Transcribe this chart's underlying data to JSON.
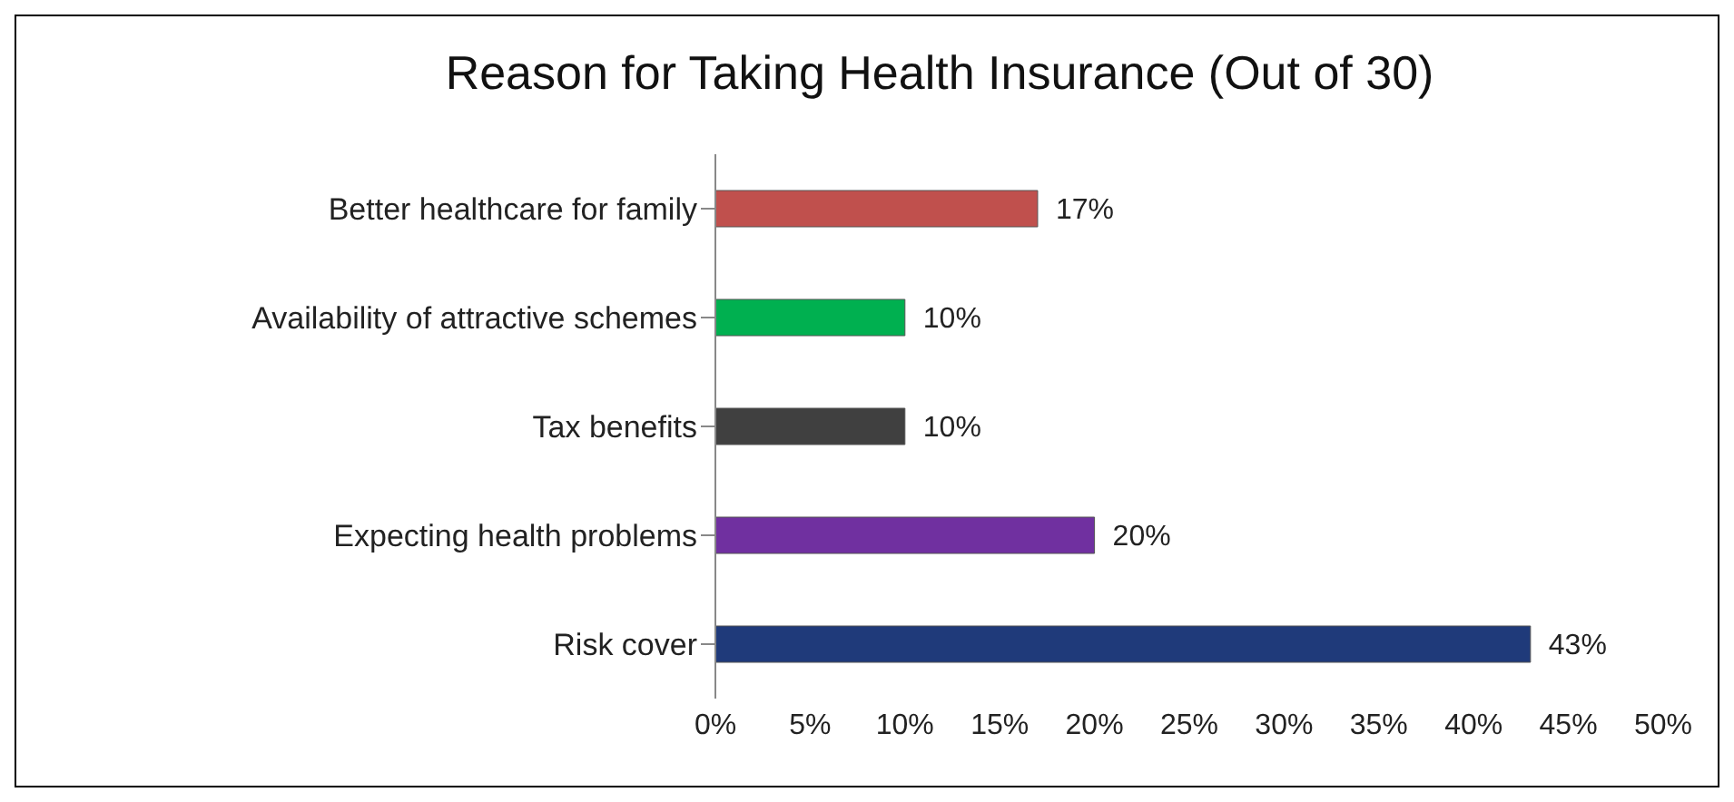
{
  "chart_data": {
    "type": "bar",
    "orientation": "horizontal",
    "title": "Reason for Taking Health Insurance (Out of 30)",
    "categories": [
      "Better healthcare for family",
      "Availability of attractive schemes",
      "Tax benefits",
      "Expecting health problems",
      "Risk cover"
    ],
    "values": [
      17,
      10,
      10,
      20,
      43
    ],
    "colors": [
      "#c0504d",
      "#00b050",
      "#404040",
      "#7030a0",
      "#1f3a7a"
    ],
    "value_labels": [
      "17%",
      "10%",
      "10%",
      "20%",
      "43%"
    ],
    "xlim": [
      0,
      50
    ],
    "xticks": [
      {
        "value": 0,
        "label": "0%"
      },
      {
        "value": 5,
        "label": "5%"
      },
      {
        "value": 10,
        "label": "10%"
      },
      {
        "value": 15,
        "label": "15%"
      },
      {
        "value": 20,
        "label": "20%"
      },
      {
        "value": 25,
        "label": "25%"
      },
      {
        "value": 30,
        "label": "30%"
      },
      {
        "value": 35,
        "label": "35%"
      },
      {
        "value": 40,
        "label": "40%"
      },
      {
        "value": 45,
        "label": "45%"
      },
      {
        "value": 50,
        "label": "50%"
      }
    ],
    "grid": false,
    "legend": false
  }
}
